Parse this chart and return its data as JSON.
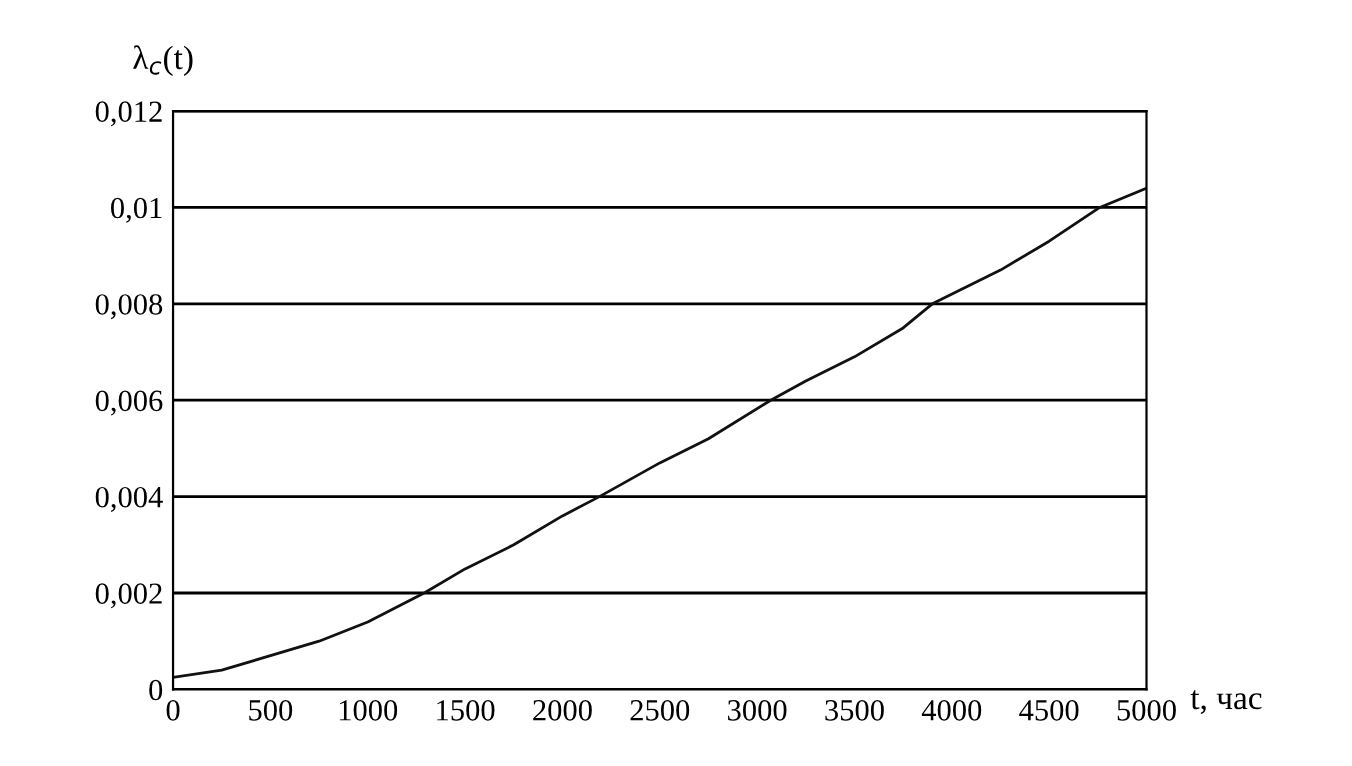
{
  "chart_data": {
    "type": "line",
    "xlabel": "t, час",
    "ylabel": "λ$_{c}$(t)",
    "x": [
      0,
      250,
      500,
      750,
      1000,
      1290,
      1500,
      1750,
      2000,
      2190,
      2500,
      2750,
      3070,
      3250,
      3500,
      3750,
      3900,
      4250,
      4500,
      4760,
      5000
    ],
    "series": [
      {
        "color": "#111111",
        "values": [
          0.00025,
          0.0004,
          0.0007,
          0.001,
          0.0014,
          0.002,
          0.0025,
          0.003,
          0.0036,
          0.004,
          0.0047,
          0.0052,
          0.006,
          0.0064,
          0.0069,
          0.0075,
          0.008,
          0.0087,
          0.0093,
          0.01,
          0.0104
        ]
      }
    ],
    "xlim": [
      0,
      5000
    ],
    "xticks": [
      0,
      500,
      1000,
      1500,
      2000,
      2500,
      3000,
      3500,
      4000,
      4500,
      5000
    ],
    "ylim": [
      0,
      0.012
    ],
    "yticks": [
      {
        "value": 0,
        "label": "0"
      },
      {
        "value": 0.002,
        "label": "0,002"
      },
      {
        "value": 0.004,
        "label": "0,004"
      },
      {
        "value": 0.006,
        "label": "0,006"
      },
      {
        "value": 0.008,
        "label": "0,008"
      },
      {
        "value": 0.01,
        "label": "0,01"
      },
      {
        "value": 0.012,
        "label": "0,012"
      }
    ],
    "grid": "y",
    "legend": false,
    "marker": "none",
    "line_style": "solid"
  }
}
